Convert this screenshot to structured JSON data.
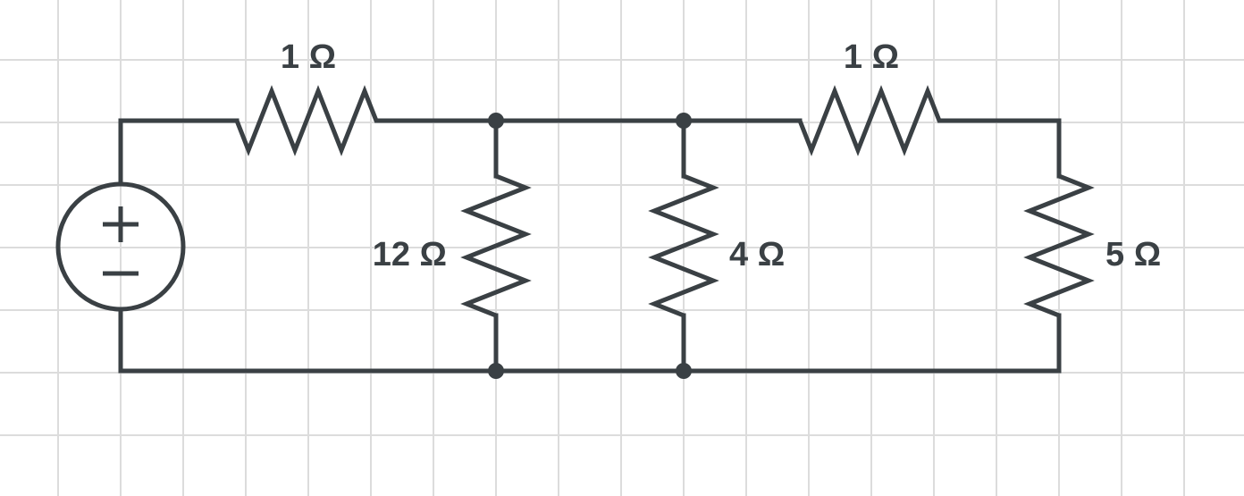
{
  "diagram": {
    "labels": {
      "r_top_left": "1 Ω",
      "r_top_right": "1 Ω",
      "r_12": "12 Ω",
      "r_4": "4 Ω",
      "r_5": "5 Ω"
    },
    "source": {
      "plus_symbol": "+",
      "minus_symbol": "−"
    },
    "colors": {
      "wire": "#3a4044",
      "grid": "#dcdcdc",
      "background": "#ffffff"
    }
  }
}
